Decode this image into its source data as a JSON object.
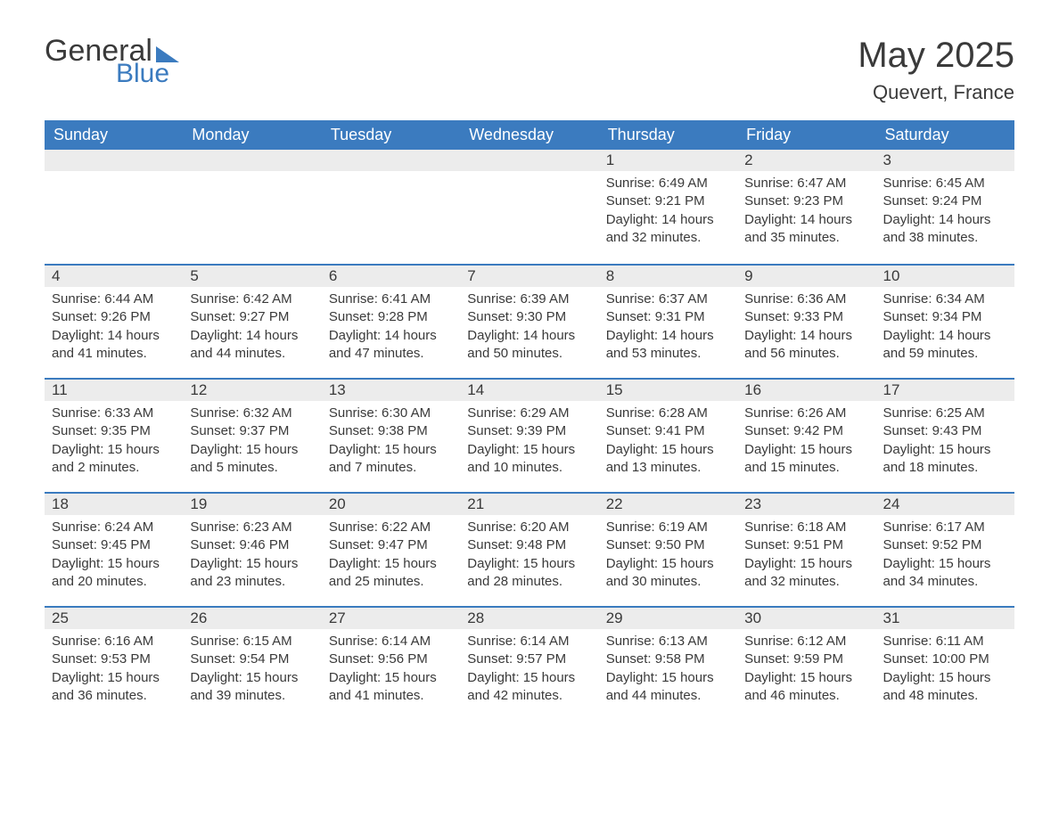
{
  "logo": {
    "word1": "General",
    "word2": "Blue"
  },
  "title": "May 2025",
  "location": "Quevert, France",
  "colors": {
    "header_bg": "#3b7bbf",
    "header_text": "#ffffff",
    "daynum_bg": "#ececec",
    "divider": "#3b7bbf",
    "body_text": "#3a3a3a",
    "page_bg": "#ffffff"
  },
  "typography": {
    "title_fontsize": 40,
    "location_fontsize": 22,
    "header_fontsize": 18,
    "daynum_fontsize": 17,
    "body_fontsize": 15,
    "font_family": "Arial"
  },
  "layout": {
    "columns": 7,
    "rows": 5,
    "start_weekday": "Sunday"
  },
  "weekdays": [
    "Sunday",
    "Monday",
    "Tuesday",
    "Wednesday",
    "Thursday",
    "Friday",
    "Saturday"
  ],
  "weeks": [
    [
      null,
      null,
      null,
      null,
      {
        "n": "1",
        "sunrise": "Sunrise: 6:49 AM",
        "sunset": "Sunset: 9:21 PM",
        "daylight": "Daylight: 14 hours and 32 minutes."
      },
      {
        "n": "2",
        "sunrise": "Sunrise: 6:47 AM",
        "sunset": "Sunset: 9:23 PM",
        "daylight": "Daylight: 14 hours and 35 minutes."
      },
      {
        "n": "3",
        "sunrise": "Sunrise: 6:45 AM",
        "sunset": "Sunset: 9:24 PM",
        "daylight": "Daylight: 14 hours and 38 minutes."
      }
    ],
    [
      {
        "n": "4",
        "sunrise": "Sunrise: 6:44 AM",
        "sunset": "Sunset: 9:26 PM",
        "daylight": "Daylight: 14 hours and 41 minutes."
      },
      {
        "n": "5",
        "sunrise": "Sunrise: 6:42 AM",
        "sunset": "Sunset: 9:27 PM",
        "daylight": "Daylight: 14 hours and 44 minutes."
      },
      {
        "n": "6",
        "sunrise": "Sunrise: 6:41 AM",
        "sunset": "Sunset: 9:28 PM",
        "daylight": "Daylight: 14 hours and 47 minutes."
      },
      {
        "n": "7",
        "sunrise": "Sunrise: 6:39 AM",
        "sunset": "Sunset: 9:30 PM",
        "daylight": "Daylight: 14 hours and 50 minutes."
      },
      {
        "n": "8",
        "sunrise": "Sunrise: 6:37 AM",
        "sunset": "Sunset: 9:31 PM",
        "daylight": "Daylight: 14 hours and 53 minutes."
      },
      {
        "n": "9",
        "sunrise": "Sunrise: 6:36 AM",
        "sunset": "Sunset: 9:33 PM",
        "daylight": "Daylight: 14 hours and 56 minutes."
      },
      {
        "n": "10",
        "sunrise": "Sunrise: 6:34 AM",
        "sunset": "Sunset: 9:34 PM",
        "daylight": "Daylight: 14 hours and 59 minutes."
      }
    ],
    [
      {
        "n": "11",
        "sunrise": "Sunrise: 6:33 AM",
        "sunset": "Sunset: 9:35 PM",
        "daylight": "Daylight: 15 hours and 2 minutes."
      },
      {
        "n": "12",
        "sunrise": "Sunrise: 6:32 AM",
        "sunset": "Sunset: 9:37 PM",
        "daylight": "Daylight: 15 hours and 5 minutes."
      },
      {
        "n": "13",
        "sunrise": "Sunrise: 6:30 AM",
        "sunset": "Sunset: 9:38 PM",
        "daylight": "Daylight: 15 hours and 7 minutes."
      },
      {
        "n": "14",
        "sunrise": "Sunrise: 6:29 AM",
        "sunset": "Sunset: 9:39 PM",
        "daylight": "Daylight: 15 hours and 10 minutes."
      },
      {
        "n": "15",
        "sunrise": "Sunrise: 6:28 AM",
        "sunset": "Sunset: 9:41 PM",
        "daylight": "Daylight: 15 hours and 13 minutes."
      },
      {
        "n": "16",
        "sunrise": "Sunrise: 6:26 AM",
        "sunset": "Sunset: 9:42 PM",
        "daylight": "Daylight: 15 hours and 15 minutes."
      },
      {
        "n": "17",
        "sunrise": "Sunrise: 6:25 AM",
        "sunset": "Sunset: 9:43 PM",
        "daylight": "Daylight: 15 hours and 18 minutes."
      }
    ],
    [
      {
        "n": "18",
        "sunrise": "Sunrise: 6:24 AM",
        "sunset": "Sunset: 9:45 PM",
        "daylight": "Daylight: 15 hours and 20 minutes."
      },
      {
        "n": "19",
        "sunrise": "Sunrise: 6:23 AM",
        "sunset": "Sunset: 9:46 PM",
        "daylight": "Daylight: 15 hours and 23 minutes."
      },
      {
        "n": "20",
        "sunrise": "Sunrise: 6:22 AM",
        "sunset": "Sunset: 9:47 PM",
        "daylight": "Daylight: 15 hours and 25 minutes."
      },
      {
        "n": "21",
        "sunrise": "Sunrise: 6:20 AM",
        "sunset": "Sunset: 9:48 PM",
        "daylight": "Daylight: 15 hours and 28 minutes."
      },
      {
        "n": "22",
        "sunrise": "Sunrise: 6:19 AM",
        "sunset": "Sunset: 9:50 PM",
        "daylight": "Daylight: 15 hours and 30 minutes."
      },
      {
        "n": "23",
        "sunrise": "Sunrise: 6:18 AM",
        "sunset": "Sunset: 9:51 PM",
        "daylight": "Daylight: 15 hours and 32 minutes."
      },
      {
        "n": "24",
        "sunrise": "Sunrise: 6:17 AM",
        "sunset": "Sunset: 9:52 PM",
        "daylight": "Daylight: 15 hours and 34 minutes."
      }
    ],
    [
      {
        "n": "25",
        "sunrise": "Sunrise: 6:16 AM",
        "sunset": "Sunset: 9:53 PM",
        "daylight": "Daylight: 15 hours and 36 minutes."
      },
      {
        "n": "26",
        "sunrise": "Sunrise: 6:15 AM",
        "sunset": "Sunset: 9:54 PM",
        "daylight": "Daylight: 15 hours and 39 minutes."
      },
      {
        "n": "27",
        "sunrise": "Sunrise: 6:14 AM",
        "sunset": "Sunset: 9:56 PM",
        "daylight": "Daylight: 15 hours and 41 minutes."
      },
      {
        "n": "28",
        "sunrise": "Sunrise: 6:14 AM",
        "sunset": "Sunset: 9:57 PM",
        "daylight": "Daylight: 15 hours and 42 minutes."
      },
      {
        "n": "29",
        "sunrise": "Sunrise: 6:13 AM",
        "sunset": "Sunset: 9:58 PM",
        "daylight": "Daylight: 15 hours and 44 minutes."
      },
      {
        "n": "30",
        "sunrise": "Sunrise: 6:12 AM",
        "sunset": "Sunset: 9:59 PM",
        "daylight": "Daylight: 15 hours and 46 minutes."
      },
      {
        "n": "31",
        "sunrise": "Sunrise: 6:11 AM",
        "sunset": "Sunset: 10:00 PM",
        "daylight": "Daylight: 15 hours and 48 minutes."
      }
    ]
  ]
}
